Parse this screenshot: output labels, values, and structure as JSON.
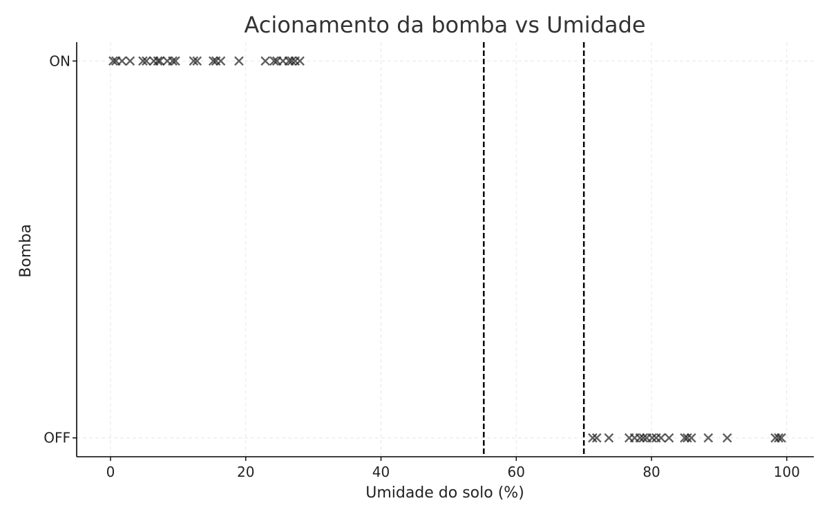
{
  "chart_data": {
    "type": "scatter",
    "title": "Acionamento da bomba vs Umidade",
    "xlabel": "Umidade do solo (%)",
    "ylabel": "Bomba",
    "xlim": [
      -5,
      104
    ],
    "ylim": [
      -0.05,
      1.05
    ],
    "x_ticks": [
      0,
      20,
      40,
      60,
      80,
      100
    ],
    "y_ticks": [
      {
        "value": 0,
        "label": "OFF"
      },
      {
        "value": 1,
        "label": "ON"
      }
    ],
    "grid": true,
    "marker": "x",
    "marker_color": "#222222",
    "thresholds": [
      55.2,
      70.0
    ],
    "series": [
      {
        "y": 1,
        "x": [
          0.4,
          0.8,
          1.7,
          2.9,
          4.8,
          5.3,
          6.4,
          7.0,
          7.3,
          8.4,
          9.2,
          9.6,
          12.3,
          12.8,
          15.2,
          15.6,
          16.3,
          19.0,
          22.9,
          24.2,
          24.6,
          25.5,
          26.4,
          26.8,
          27.3,
          28.0
        ]
      },
      {
        "y": 0,
        "x": [
          71.3,
          71.9,
          73.7,
          76.7,
          77.5,
          78.3,
          78.8,
          79.3,
          80.1,
          80.7,
          81.4,
          82.6,
          84.9,
          85.3,
          85.9,
          88.4,
          91.2,
          98.3,
          98.8,
          99.2
        ]
      }
    ]
  }
}
